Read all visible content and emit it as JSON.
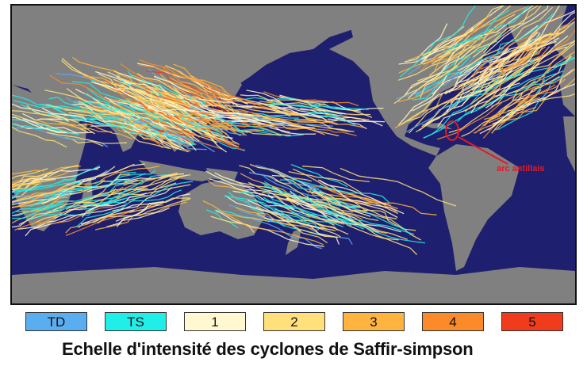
{
  "map": {
    "colors": {
      "ocean": "#1f1f6f",
      "land": "#808080",
      "annotation": "#e01b2a"
    },
    "annotation": {
      "label": "arc antillais",
      "marker": "red-ellipse"
    }
  },
  "legend": {
    "items": [
      {
        "label": "TD",
        "color": "#5aaef0"
      },
      {
        "label": "TS",
        "color": "#20eee8"
      },
      {
        "label": "1",
        "color": "#fff8d0"
      },
      {
        "label": "2",
        "color": "#ffe07a"
      },
      {
        "label": "3",
        "color": "#ffb440"
      },
      {
        "label": "4",
        "color": "#fb8a28"
      },
      {
        "label": "5",
        "color": "#f03c1c"
      }
    ],
    "caption": "Echelle d'intensité des cyclones de Saffir-simpson"
  }
}
